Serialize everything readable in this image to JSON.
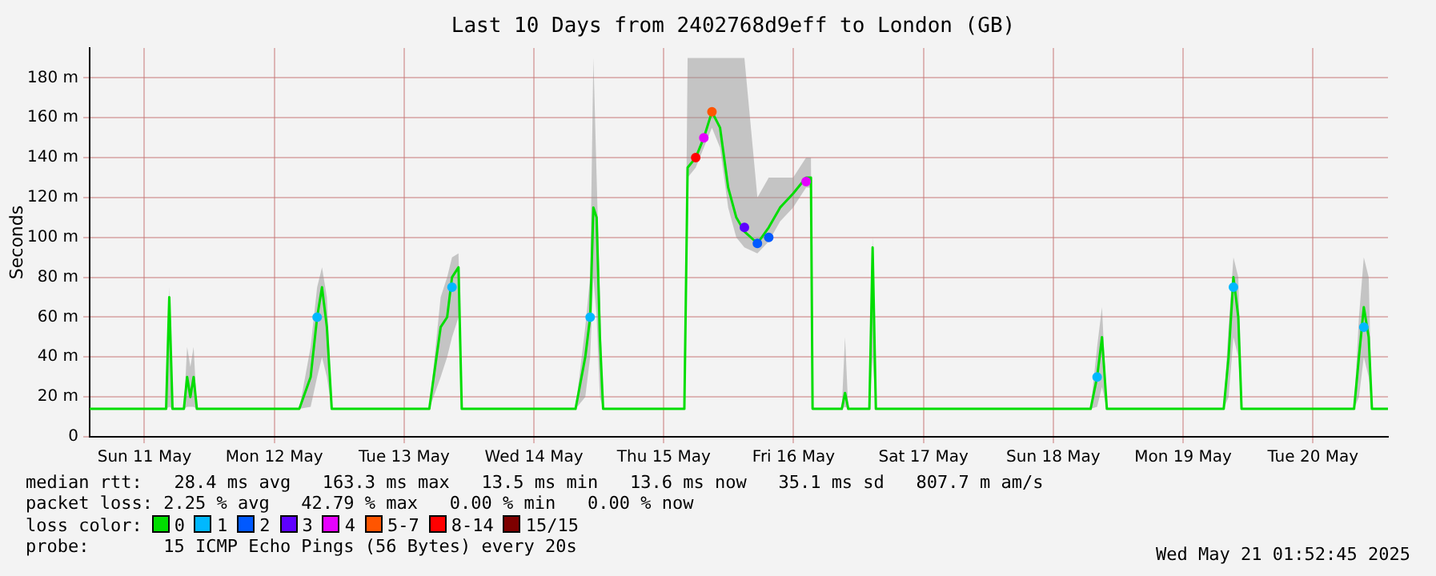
{
  "chart_data": {
    "type": "line",
    "title": "Last 10 Days from 2402768d9eff to London (GB)",
    "ylabel": "Seconds",
    "legend_title": "loss color:",
    "legend": "bottom",
    "grid": true,
    "xlim": [
      "2025-05-11T01:52",
      "2025-05-21T01:52"
    ],
    "xticks": [
      {
        "value": "2025-05-11T12:00",
        "label": "Sun 11 May"
      },
      {
        "value": "2025-05-12T12:00",
        "label": "Mon 12 May"
      },
      {
        "value": "2025-05-13T12:00",
        "label": "Tue 13 May"
      },
      {
        "value": "2025-05-14T12:00",
        "label": "Wed 14 May"
      },
      {
        "value": "2025-05-15T12:00",
        "label": "Thu 15 May"
      },
      {
        "value": "2025-05-16T12:00",
        "label": "Fri 16 May"
      },
      {
        "value": "2025-05-17T12:00",
        "label": "Sat 17 May"
      },
      {
        "value": "2025-05-18T12:00",
        "label": "Sun 18 May"
      },
      {
        "value": "2025-05-19T12:00",
        "label": "Mon 19 May"
      },
      {
        "value": "2025-05-20T12:00",
        "label": "Tue 20 May"
      }
    ],
    "ylim": [
      0,
      195
    ],
    "yticks": [
      0,
      {
        "value": 20,
        "label": "20 m"
      },
      {
        "value": 40,
        "label": "40 m"
      },
      {
        "value": 60,
        "label": "60 m"
      },
      {
        "value": 80,
        "label": "80 m"
      },
      {
        "value": 100,
        "label": "100 m"
      },
      {
        "value": 120,
        "label": "120 m"
      },
      {
        "value": 140,
        "label": "140 m"
      },
      {
        "value": 160,
        "label": "160 m"
      },
      {
        "value": 180,
        "label": "180 m"
      }
    ],
    "series": [
      {
        "name": "0",
        "color": "#00dd00",
        "x": [
          "2025-05-11T01:52",
          "2025-05-11T16:00",
          "2025-05-11T16:35",
          "2025-05-11T17:11",
          "2025-05-11T19:17",
          "2025-05-11T19:53",
          "2025-05-11T20:29",
          "2025-05-11T21:05",
          "2025-05-11T21:41",
          "2025-05-12T16:37",
          "2025-05-12T18:43",
          "2025-05-12T19:55",
          "2025-05-12T20:49",
          "2025-05-12T21:43",
          "2025-05-12T22:37",
          "2025-05-13T16:39",
          "2025-05-13T18:45",
          "2025-05-13T19:57",
          "2025-05-13T20:51",
          "2025-05-13T22:03",
          "2025-05-13T22:39",
          "2025-05-14T19:41",
          "2025-05-14T21:29",
          "2025-05-14T22:23",
          "2025-05-14T22:59",
          "2025-05-14T23:35",
          "2025-05-15T00:11",
          "2025-05-15T00:47",
          "2025-05-15T15:48",
          "2025-05-15T16:24",
          "2025-05-15T17:54",
          "2025-05-15T19:24",
          "2025-05-15T20:54",
          "2025-05-15T22:24",
          "2025-05-15T23:54",
          "2025-05-16T01:24",
          "2025-05-16T02:54",
          "2025-05-16T05:18",
          "2025-05-16T07:24",
          "2025-05-16T09:30",
          "2025-05-16T11:54",
          "2025-05-16T14:18",
          "2025-05-16T15:12",
          "2025-05-16T15:30",
          "2025-05-16T20:54",
          "2025-05-16T21:30",
          "2025-05-16T22:06",
          "2025-05-17T02:00",
          "2025-05-17T02:36",
          "2025-05-17T03:12",
          "2025-05-18T18:54",
          "2025-05-18T20:06",
          "2025-05-18T21:00",
          "2025-05-18T21:54",
          "2025-05-19T19:30",
          "2025-05-19T20:24",
          "2025-05-19T21:18",
          "2025-05-19T22:12",
          "2025-05-19T22:48",
          "2025-05-20T19:36",
          "2025-05-20T20:30",
          "2025-05-20T21:24",
          "2025-05-20T22:18",
          "2025-05-20T22:54",
          "2025-05-21T01:52"
        ],
        "values": [
          14,
          14,
          70,
          14,
          14,
          30,
          20,
          30,
          14,
          14,
          30,
          60,
          75,
          55,
          14,
          14,
          55,
          60,
          80,
          85,
          14,
          14,
          40,
          60,
          115,
          110,
          50,
          14,
          14,
          135,
          140,
          150,
          163,
          155,
          125,
          110,
          103,
          97,
          105,
          115,
          122,
          130,
          130,
          14,
          14,
          22,
          14,
          14,
          95,
          14,
          14,
          30,
          50,
          14,
          14,
          40,
          80,
          60,
          14,
          14,
          40,
          65,
          50,
          14,
          14
        ],
        "lower": [
          14,
          14,
          15,
          14,
          14,
          15,
          15,
          15,
          14,
          14,
          15,
          30,
          40,
          30,
          14,
          14,
          30,
          40,
          50,
          60,
          14,
          14,
          20,
          40,
          80,
          60,
          20,
          14,
          14,
          130,
          135,
          145,
          155,
          145,
          115,
          100,
          95,
          92,
          98,
          108,
          115,
          125,
          125,
          14,
          14,
          15,
          14,
          14,
          40,
          14,
          14,
          15,
          25,
          14,
          14,
          20,
          50,
          40,
          14,
          14,
          20,
          40,
          30,
          14,
          14
        ],
        "upper": [
          14,
          14,
          75,
          14,
          14,
          45,
          35,
          45,
          14,
          14,
          45,
          75,
          85,
          70,
          14,
          14,
          70,
          80,
          90,
          92,
          14,
          14,
          55,
          80,
          190,
          130,
          70,
          14,
          14,
          190,
          190,
          190,
          190,
          190,
          190,
          190,
          190,
          120,
          130,
          130,
          130,
          140,
          140,
          14,
          14,
          50,
          14,
          14,
          100,
          14,
          14,
          45,
          65,
          14,
          14,
          55,
          90,
          80,
          14,
          14,
          60,
          90,
          80,
          14,
          14
        ]
      },
      {
        "name": "1",
        "type": "scatter",
        "marker": "circle",
        "color": "#00b8ff",
        "x": [
          "2025-05-12T19:55",
          "2025-05-13T20:51",
          "2025-05-14T22:23",
          "2025-05-18T20:06",
          "2025-05-19T21:18",
          "2025-05-20T21:24"
        ],
        "values": [
          60,
          75,
          60,
          30,
          75,
          55
        ]
      },
      {
        "name": "2",
        "type": "scatter",
        "marker": "circle",
        "color": "#0059ff",
        "x": [
          "2025-05-16T05:18",
          "2025-05-16T07:24"
        ],
        "values": [
          97,
          100
        ]
      },
      {
        "name": "3",
        "type": "scatter",
        "marker": "circle",
        "color": "#5e00ff",
        "x": [
          "2025-05-16T02:54"
        ],
        "values": [
          105
        ]
      },
      {
        "name": "4",
        "type": "scatter",
        "marker": "circle",
        "color": "#e600ff",
        "x": [
          "2025-05-15T19:24",
          "2025-05-16T14:18"
        ],
        "values": [
          150,
          128
        ]
      },
      {
        "name": "5-7",
        "type": "scatter",
        "marker": "circle",
        "color": "#ff5500",
        "x": [
          "2025-05-15T20:54"
        ],
        "values": [
          163
        ]
      },
      {
        "name": "8-14",
        "type": "scatter",
        "marker": "circle",
        "color": "#ff0000",
        "x": [
          "2025-05-15T17:54"
        ],
        "values": [
          140
        ]
      },
      {
        "name": "15/15",
        "type": "scatter",
        "color": "#7e0000"
      }
    ],
    "annotations": [
      "median rtt:   28.4 ms avg   163.3 ms max   13.5 ms min   13.6 ms now   35.1 ms sd   807.7 m am/s",
      "packet loss: 2.25 % avg   42.79 % max   0.00 % min   0.00 % now",
      "probe:       15 ICMP Echo Pings (56 Bytes) every 20s",
      "Wed May 21 01:52:45 2025"
    ]
  }
}
